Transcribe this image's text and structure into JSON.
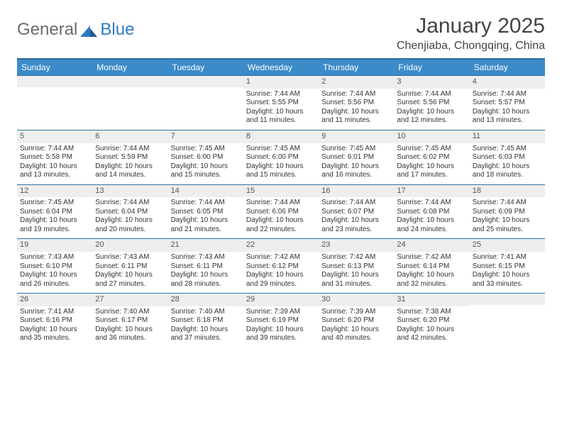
{
  "logo": {
    "text1": "General",
    "text2": "Blue"
  },
  "title": "January 2025",
  "location": "Chenjiaba, Chongqing, China",
  "colors": {
    "header_bg": "#3b8bc9",
    "header_border": "#2f6fa3",
    "daynum_bg": "#eeeeee",
    "text": "#333333",
    "logo_gray": "#6b6b6b",
    "logo_blue": "#2f7bbf"
  },
  "day_labels": [
    "Sunday",
    "Monday",
    "Tuesday",
    "Wednesday",
    "Thursday",
    "Friday",
    "Saturday"
  ],
  "weeks": [
    [
      null,
      null,
      null,
      {
        "n": "1",
        "sr": "7:44 AM",
        "ss": "5:55 PM",
        "dl": "10 hours",
        "dm": "11 minutes."
      },
      {
        "n": "2",
        "sr": "7:44 AM",
        "ss": "5:56 PM",
        "dl": "10 hours",
        "dm": "11 minutes."
      },
      {
        "n": "3",
        "sr": "7:44 AM",
        "ss": "5:56 PM",
        "dl": "10 hours",
        "dm": "12 minutes."
      },
      {
        "n": "4",
        "sr": "7:44 AM",
        "ss": "5:57 PM",
        "dl": "10 hours",
        "dm": "13 minutes."
      }
    ],
    [
      {
        "n": "5",
        "sr": "7:44 AM",
        "ss": "5:58 PM",
        "dl": "10 hours",
        "dm": "13 minutes."
      },
      {
        "n": "6",
        "sr": "7:44 AM",
        "ss": "5:59 PM",
        "dl": "10 hours",
        "dm": "14 minutes."
      },
      {
        "n": "7",
        "sr": "7:45 AM",
        "ss": "6:00 PM",
        "dl": "10 hours",
        "dm": "15 minutes."
      },
      {
        "n": "8",
        "sr": "7:45 AM",
        "ss": "6:00 PM",
        "dl": "10 hours",
        "dm": "15 minutes."
      },
      {
        "n": "9",
        "sr": "7:45 AM",
        "ss": "6:01 PM",
        "dl": "10 hours",
        "dm": "16 minutes."
      },
      {
        "n": "10",
        "sr": "7:45 AM",
        "ss": "6:02 PM",
        "dl": "10 hours",
        "dm": "17 minutes."
      },
      {
        "n": "11",
        "sr": "7:45 AM",
        "ss": "6:03 PM",
        "dl": "10 hours",
        "dm": "18 minutes."
      }
    ],
    [
      {
        "n": "12",
        "sr": "7:45 AM",
        "ss": "6:04 PM",
        "dl": "10 hours",
        "dm": "19 minutes."
      },
      {
        "n": "13",
        "sr": "7:44 AM",
        "ss": "6:04 PM",
        "dl": "10 hours",
        "dm": "20 minutes."
      },
      {
        "n": "14",
        "sr": "7:44 AM",
        "ss": "6:05 PM",
        "dl": "10 hours",
        "dm": "21 minutes."
      },
      {
        "n": "15",
        "sr": "7:44 AM",
        "ss": "6:06 PM",
        "dl": "10 hours",
        "dm": "22 minutes."
      },
      {
        "n": "16",
        "sr": "7:44 AM",
        "ss": "6:07 PM",
        "dl": "10 hours",
        "dm": "23 minutes."
      },
      {
        "n": "17",
        "sr": "7:44 AM",
        "ss": "6:08 PM",
        "dl": "10 hours",
        "dm": "24 minutes."
      },
      {
        "n": "18",
        "sr": "7:44 AM",
        "ss": "6:09 PM",
        "dl": "10 hours",
        "dm": "25 minutes."
      }
    ],
    [
      {
        "n": "19",
        "sr": "7:43 AM",
        "ss": "6:10 PM",
        "dl": "10 hours",
        "dm": "26 minutes."
      },
      {
        "n": "20",
        "sr": "7:43 AM",
        "ss": "6:11 PM",
        "dl": "10 hours",
        "dm": "27 minutes."
      },
      {
        "n": "21",
        "sr": "7:43 AM",
        "ss": "6:11 PM",
        "dl": "10 hours",
        "dm": "28 minutes."
      },
      {
        "n": "22",
        "sr": "7:42 AM",
        "ss": "6:12 PM",
        "dl": "10 hours",
        "dm": "29 minutes."
      },
      {
        "n": "23",
        "sr": "7:42 AM",
        "ss": "6:13 PM",
        "dl": "10 hours",
        "dm": "31 minutes."
      },
      {
        "n": "24",
        "sr": "7:42 AM",
        "ss": "6:14 PM",
        "dl": "10 hours",
        "dm": "32 minutes."
      },
      {
        "n": "25",
        "sr": "7:41 AM",
        "ss": "6:15 PM",
        "dl": "10 hours",
        "dm": "33 minutes."
      }
    ],
    [
      {
        "n": "26",
        "sr": "7:41 AM",
        "ss": "6:16 PM",
        "dl": "10 hours",
        "dm": "35 minutes."
      },
      {
        "n": "27",
        "sr": "7:40 AM",
        "ss": "6:17 PM",
        "dl": "10 hours",
        "dm": "36 minutes."
      },
      {
        "n": "28",
        "sr": "7:40 AM",
        "ss": "6:18 PM",
        "dl": "10 hours",
        "dm": "37 minutes."
      },
      {
        "n": "29",
        "sr": "7:39 AM",
        "ss": "6:19 PM",
        "dl": "10 hours",
        "dm": "39 minutes."
      },
      {
        "n": "30",
        "sr": "7:39 AM",
        "ss": "6:20 PM",
        "dl": "10 hours",
        "dm": "40 minutes."
      },
      {
        "n": "31",
        "sr": "7:38 AM",
        "ss": "6:20 PM",
        "dl": "10 hours",
        "dm": "42 minutes."
      },
      null
    ]
  ],
  "labels": {
    "sunrise": "Sunrise:",
    "sunset": "Sunset:",
    "daylight": "Daylight:",
    "and": "and"
  }
}
